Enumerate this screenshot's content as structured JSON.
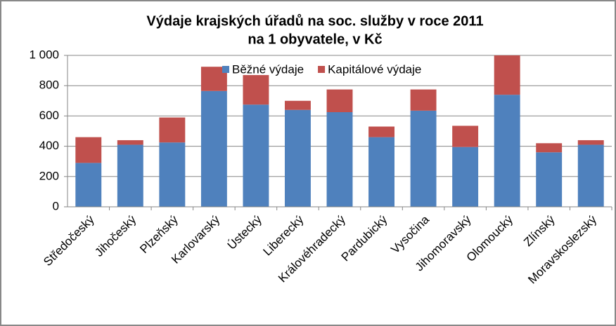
{
  "chart_data": {
    "type": "stacked_bar",
    "title": [
      "Výdaje krajských úřadů na soc. služby v roce 2011",
      "na 1 obyvatele, v Kč"
    ],
    "categories": [
      "Středočeský",
      "Jihočeský",
      "Plzeňský",
      "Karlovarský",
      "Ústecký",
      "Liberecký",
      "Královéhradecký",
      "Pardubický",
      "Vysočina",
      "Jihomoravský",
      "Olomoucký",
      "Zlínský",
      "Moravskoslezský"
    ],
    "series": [
      {
        "name": "Běžné výdaje",
        "color": "#4f81bd",
        "values": [
          290,
          410,
          425,
          765,
          675,
          640,
          625,
          460,
          635,
          395,
          740,
          360,
          410
        ]
      },
      {
        "name": "Kapitálové výdaje",
        "color": "#c0504d",
        "values": [
          170,
          30,
          165,
          160,
          195,
          60,
          150,
          70,
          140,
          140,
          260,
          60,
          30
        ]
      }
    ],
    "ylim": [
      0,
      1000
    ],
    "yticks": [
      0,
      200,
      400,
      600,
      800,
      {
        "value": 1000,
        "label": "1 000"
      }
    ],
    "grid": true,
    "legend": "top"
  }
}
